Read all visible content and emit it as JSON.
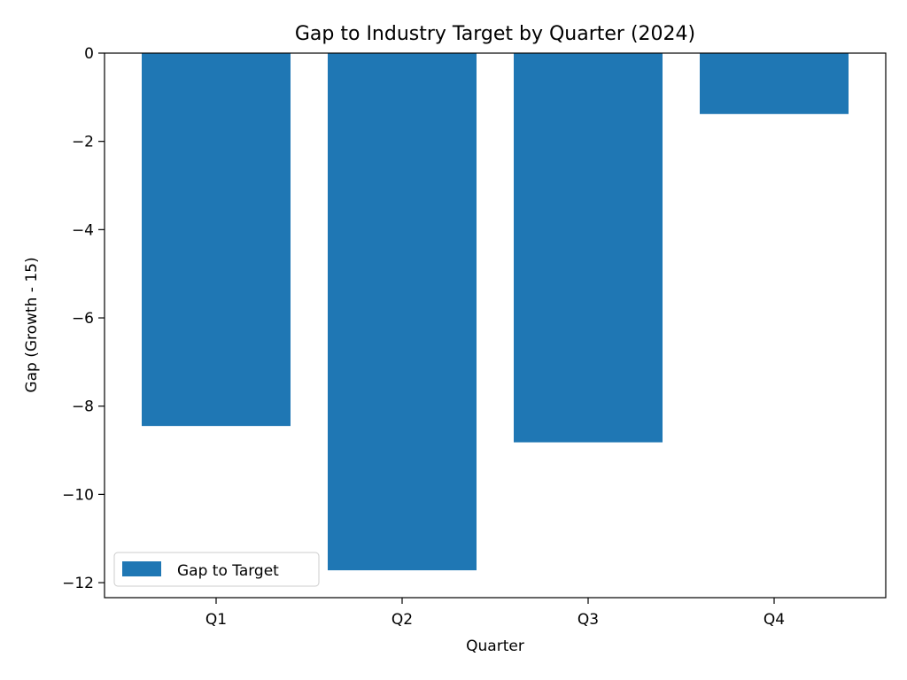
{
  "chart_data": {
    "type": "bar",
    "title": "Gap to Industry Target by Quarter (2024)",
    "xlabel": "Quarter",
    "ylabel": "Gap (Growth - 15)",
    "categories": [
      "Q1",
      "Q2",
      "Q3",
      "Q4"
    ],
    "series": [
      {
        "name": "Gap to Target",
        "values": [
          -8.45,
          -11.72,
          -8.82,
          -1.38
        ],
        "color": "#1f77b4"
      }
    ],
    "ylim": [
      -12.34,
      0
    ],
    "yticks": [
      0,
      -2,
      -4,
      -6,
      -8,
      -10,
      -12
    ],
    "ytick_labels": [
      "0",
      "−2",
      "−4",
      "−6",
      "−8",
      "−10",
      "−12"
    ],
    "grid": false,
    "legend": {
      "position": "lower-left"
    }
  }
}
